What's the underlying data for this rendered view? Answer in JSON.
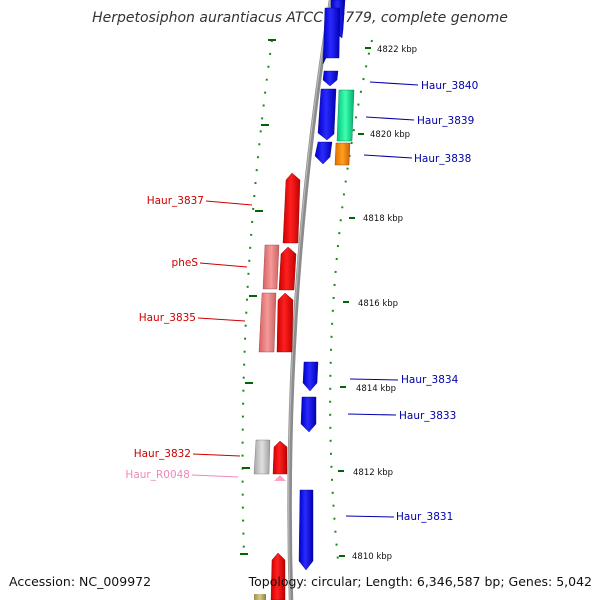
{
  "title": "Herpetosiphon aurantiacus ATCC 23779, complete genome",
  "footer": {
    "accession": "Accession: NC_009972",
    "summary": "Topology: circular; Length: 6,346,587 bp; Genes: 5,042"
  },
  "colors": {
    "forward_gene": "#0000ff",
    "reverse_gene": "#ff0000",
    "rna": "#ffa0c8",
    "label_forward": "#0000aa",
    "label_reverse": "#cc0000",
    "label_rna": "#ee88bb",
    "tick": "#006600",
    "backbone": "#888888"
  },
  "ticks": [
    {
      "label": "4822 kbp"
    },
    {
      "label": "4820 kbp"
    },
    {
      "label": "4818 kbp"
    },
    {
      "label": "4816 kbp"
    },
    {
      "label": "4814 kbp"
    },
    {
      "label": "4812 kbp"
    },
    {
      "label": "4810 kbp"
    }
  ],
  "gene_labels": [
    {
      "name": "Haur_3840",
      "strand": "forward"
    },
    {
      "name": "Haur_3839",
      "strand": "forward"
    },
    {
      "name": "Haur_3838",
      "strand": "forward"
    },
    {
      "name": "Haur_3837",
      "strand": "reverse"
    },
    {
      "name": "pheS",
      "strand": "reverse"
    },
    {
      "name": "Haur_3835",
      "strand": "reverse"
    },
    {
      "name": "Haur_3834",
      "strand": "forward"
    },
    {
      "name": "Haur_3833",
      "strand": "forward"
    },
    {
      "name": "Haur_3832",
      "strand": "reverse"
    },
    {
      "name": "Haur_R0048",
      "strand": "rna"
    },
    {
      "name": "Haur_3831",
      "strand": "forward"
    }
  ]
}
